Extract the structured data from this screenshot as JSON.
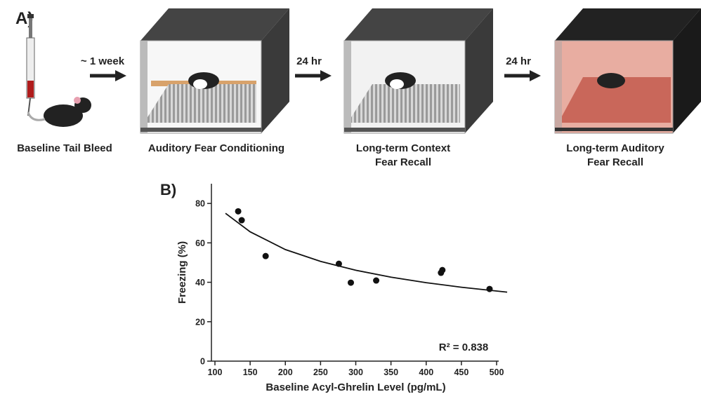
{
  "panel_a": {
    "label": "A)",
    "steps": [
      {
        "lines": [
          "Baseline Tail Bleed"
        ]
      },
      {
        "lines": [
          "Auditory Fear Conditioning"
        ]
      },
      {
        "lines": [
          "Long-term Context",
          "Fear Recall"
        ]
      },
      {
        "lines": [
          "Long-term Auditory",
          "Fear Recall"
        ]
      }
    ],
    "arrows": [
      "~ 1 week",
      "24 hr",
      "24 hr"
    ]
  },
  "chart_data": {
    "type": "scatter",
    "panel_label": "B)",
    "x_label": "Baseline Acyl-Ghrelin Level (pg/mL)",
    "y_label": "Freezing (%)",
    "annotation": "R² = 0.838",
    "x": [
      133,
      138,
      172,
      276,
      293,
      329,
      421,
      423,
      490
    ],
    "values": [
      76,
      71.5,
      53.3,
      49.4,
      39.8,
      40.9,
      44.8,
      46.2,
      36.6
    ],
    "color": "#111111",
    "fit": {
      "x": [
        115,
        150,
        200,
        250,
        300,
        350,
        400,
        450,
        515
      ],
      "values": [
        75,
        65.6,
        56.6,
        50.6,
        46.1,
        42.6,
        39.8,
        37.5,
        35
      ]
    },
    "xlim": [
      100,
      500
    ],
    "xticks": [
      100,
      150,
      200,
      250,
      300,
      350,
      400,
      450,
      500
    ],
    "ylim": [
      0,
      90
    ],
    "yticks": [
      0,
      20,
      40,
      60,
      80
    ]
  }
}
